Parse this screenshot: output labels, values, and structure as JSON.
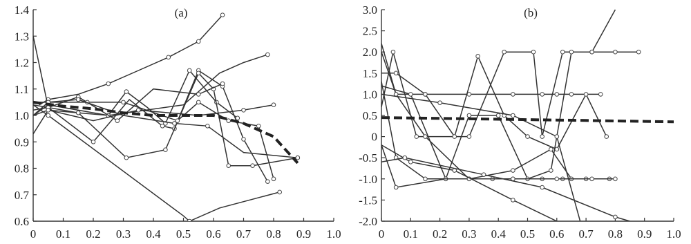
{
  "chart_data": [
    {
      "type": "line",
      "label": "(a)",
      "xlim": [
        0,
        1.0
      ],
      "ylim": [
        0.6,
        1.4
      ],
      "xticks": [
        "0",
        "0.1",
        "0.2",
        "0.3",
        "0.4",
        "0.5",
        "0.6",
        "0.7",
        "0.8",
        "0.9",
        "1.0"
      ],
      "xtick_values": [
        0,
        0.1,
        0.2,
        0.3,
        0.4,
        0.5,
        0.6,
        0.7,
        0.8,
        0.9,
        1.0
      ],
      "yticks": [
        "0.6",
        "0.7",
        "0.8",
        "0.9",
        "1.0",
        "1.1",
        "1.2",
        "1.3",
        "1.4"
      ],
      "ytick_values": [
        0.6,
        0.7,
        0.8,
        0.9,
        1.0,
        1.1,
        1.2,
        1.3,
        1.4
      ],
      "grid": false,
      "series": [
        {
          "x": [
            0.02,
            0.05,
            0.15,
            0.25,
            0.35,
            0.45,
            0.55,
            0.63
          ],
          "y": [
            1.04,
            1.06,
            1.08,
            1.12,
            1.17,
            1.22,
            1.28,
            1.38
          ],
          "markers": [
            false,
            true,
            false,
            true,
            false,
            true,
            true,
            true
          ]
        },
        {
          "x": [
            0.0,
            0.05,
            0.25,
            0.5,
            0.62,
            0.7,
            0.78
          ],
          "y": [
            1.0,
            1.04,
            1.0,
            1.04,
            1.16,
            1.2,
            1.23
          ],
          "markers": [
            false,
            true,
            false,
            false,
            false,
            false,
            true
          ]
        },
        {
          "x": [
            0.0,
            0.05,
            0.15,
            0.25,
            0.31,
            0.38,
            0.44,
            0.52,
            0.61,
            0.68
          ],
          "y": [
            1.3,
            1.03,
            1.01,
            1.0,
            1.09,
            1.03,
            0.97,
            1.17,
            1.05,
            0.99
          ],
          "markers": [
            false,
            true,
            true,
            true,
            true,
            false,
            true,
            true,
            true,
            true
          ]
        },
        {
          "x": [
            0.0,
            0.05,
            0.2,
            0.32,
            0.43,
            0.47,
            0.55,
            0.63,
            0.7,
            0.78
          ],
          "y": [
            1.04,
            1.03,
            0.9,
            1.06,
            0.96,
            0.95,
            1.17,
            1.11,
            0.91,
            0.75
          ],
          "markers": [
            false,
            true,
            true,
            false,
            true,
            true,
            true,
            true,
            true,
            true
          ]
        },
        {
          "x": [
            0.0,
            0.05,
            0.15,
            0.31,
            0.44,
            0.55,
            0.6,
            0.65,
            0.73,
            0.88
          ],
          "y": [
            0.93,
            1.02,
            1.01,
            0.84,
            0.87,
            1.16,
            1.1,
            0.81,
            0.81,
            0.84
          ],
          "markers": [
            false,
            true,
            true,
            true,
            true,
            true,
            true,
            true,
            true,
            true
          ]
        },
        {
          "x": [
            0.0,
            0.05,
            0.15,
            0.28,
            0.4,
            0.55,
            0.63
          ],
          "y": [
            1.02,
            1.03,
            1.07,
            0.98,
            1.1,
            1.08,
            1.12
          ],
          "markers": [
            false,
            true,
            true,
            true,
            false,
            true,
            true
          ]
        },
        {
          "x": [
            0.0,
            0.05,
            0.2,
            0.35,
            0.55,
            0.7,
            0.8
          ],
          "y": [
            1.0,
            1.02,
            0.98,
            1.02,
            1.0,
            1.02,
            1.04
          ],
          "markers": [
            false,
            true,
            false,
            true,
            false,
            true,
            true
          ]
        },
        {
          "x": [
            0.0,
            0.05,
            0.18,
            0.3,
            0.48,
            0.55,
            0.65,
            0.75,
            0.8
          ],
          "y": [
            1.05,
            1.05,
            1.05,
            1.05,
            0.98,
            1.05,
            0.98,
            0.96,
            0.76
          ],
          "markers": [
            false,
            true,
            true,
            true,
            true,
            true,
            true,
            true,
            true
          ]
        },
        {
          "x": [
            0.0,
            0.05,
            0.5,
            0.52,
            0.62,
            0.82
          ],
          "y": [
            1.04,
            1.0,
            0.62,
            0.6,
            0.65,
            0.71
          ],
          "markers": [
            false,
            true,
            false,
            true,
            false,
            true
          ]
        },
        {
          "x": [
            0.0,
            0.05,
            0.15,
            0.3,
            0.47,
            0.58,
            0.7,
            0.88
          ],
          "y": [
            1.0,
            1.05,
            1.06,
            1.0,
            0.97,
            0.96,
            0.86,
            0.84
          ],
          "markers": [
            false,
            true,
            true,
            false,
            true,
            true,
            false,
            true
          ]
        }
      ],
      "mean": {
        "x": [
          0.0,
          0.1,
          0.2,
          0.3,
          0.4,
          0.5,
          0.6,
          0.7,
          0.8,
          0.88
        ],
        "y": [
          1.05,
          1.035,
          1.025,
          1.01,
          1.0,
          1.0,
          1.0,
          0.97,
          0.92,
          0.82
        ]
      }
    },
    {
      "type": "line",
      "label": "(b)",
      "xlim": [
        0,
        1.0
      ],
      "ylim": [
        -2.0,
        3.0
      ],
      "xticks": [
        "0",
        "0.1",
        "0.2",
        "0.3",
        "0.4",
        "0.5",
        "0.6",
        "0.7",
        "0.8",
        "0.9",
        "1.0"
      ],
      "xtick_values": [
        0,
        0.1,
        0.2,
        0.3,
        0.4,
        0.5,
        0.6,
        0.7,
        0.8,
        0.9,
        1.0
      ],
      "yticks": [
        "-2.0",
        "-1.5",
        "-1.0",
        "-0.5",
        "0",
        "0.5",
        "1.0",
        "1.5",
        "2.0",
        "2.5",
        "3.0"
      ],
      "ytick_values": [
        -2.0,
        -1.5,
        -1.0,
        -0.5,
        0,
        0.5,
        1.0,
        1.5,
        2.0,
        2.5,
        3.0
      ],
      "grid": false,
      "series": [
        {
          "x": [
            0.0,
            0.05,
            0.15,
            0.3,
            0.45,
            0.55,
            0.6,
            0.65,
            0.75
          ],
          "y": [
            2.0,
            1.0,
            1.0,
            1.0,
            1.0,
            1.0,
            1.0,
            1.0,
            1.0
          ],
          "markers": [
            false,
            true,
            true,
            true,
            true,
            true,
            true,
            true,
            true
          ]
        },
        {
          "x": [
            0.0,
            0.04,
            0.12,
            0.3,
            0.42,
            0.52,
            0.55,
            0.62,
            0.72,
            0.8,
            0.88
          ],
          "y": [
            0.7,
            2.0,
            0.0,
            0.0,
            2.0,
            2.0,
            0.0,
            2.0,
            2.0,
            2.0,
            2.0
          ],
          "markers": [
            false,
            true,
            true,
            true,
            true,
            true,
            true,
            true,
            true,
            true,
            true
          ]
        },
        {
          "x": [
            0.0,
            0.05,
            0.15,
            0.25,
            0.33,
            0.42,
            0.5,
            0.6,
            0.7,
            0.77
          ],
          "y": [
            1.5,
            1.5,
            1.0,
            0.0,
            1.9,
            0.5,
            0.0,
            -0.3,
            1.0,
            0.0
          ],
          "markers": [
            false,
            true,
            true,
            true,
            true,
            true,
            true,
            true,
            true,
            true
          ]
        },
        {
          "x": [
            0.0,
            0.05,
            0.22,
            0.38,
            0.45,
            0.55,
            0.62,
            0.7,
            0.78
          ],
          "y": [
            -0.2,
            -1.2,
            -1.0,
            -1.0,
            -1.0,
            -1.0,
            -1.0,
            -1.0,
            -1.0
          ],
          "markers": [
            false,
            true,
            true,
            true,
            true,
            true,
            true,
            true,
            true
          ]
        },
        {
          "x": [
            0.0,
            0.1,
            0.22,
            0.3,
            0.4,
            0.5,
            0.58,
            0.65,
            0.72,
            0.8
          ],
          "y": [
            1.2,
            1.0,
            -1.0,
            0.5,
            0.5,
            -1.0,
            -0.8,
            2.0,
            2.0,
            3.0
          ],
          "markers": [
            false,
            true,
            true,
            true,
            true,
            true,
            true,
            true,
            true,
            false
          ]
        },
        {
          "x": [
            0.0,
            0.05,
            0.15,
            0.3,
            0.45,
            0.58,
            0.65,
            0.8
          ],
          "y": [
            2.2,
            1.0,
            0.0,
            -1.0,
            -0.8,
            -0.3,
            -1.0,
            -1.0
          ],
          "markers": [
            false,
            true,
            true,
            true,
            true,
            true,
            true,
            true
          ]
        },
        {
          "x": [
            0.0,
            0.05,
            0.15,
            0.3,
            0.45,
            0.6,
            0.72
          ],
          "y": [
            1.3,
            -0.5,
            -1.0,
            -1.0,
            -1.0,
            -1.0,
            -1.0
          ],
          "markers": [
            false,
            true,
            true,
            true,
            true,
            true,
            true
          ]
        },
        {
          "x": [
            0.0,
            0.1,
            0.25,
            0.45,
            0.6
          ],
          "y": [
            -0.2,
            -0.6,
            -0.8,
            -1.5,
            -2.0
          ],
          "markers": [
            false,
            true,
            true,
            true,
            false
          ]
        },
        {
          "x": [
            0.0,
            0.08,
            0.35,
            0.55,
            0.8,
            0.85
          ],
          "y": [
            -0.6,
            -0.5,
            -0.9,
            -1.2,
            -1.9,
            -2.0
          ],
          "markers": [
            false,
            true,
            true,
            true,
            true,
            false
          ]
        },
        {
          "x": [
            0.0,
            0.2,
            0.45,
            0.6,
            0.68
          ],
          "y": [
            1.0,
            0.8,
            0.5,
            0.0,
            -2.0
          ],
          "markers": [
            false,
            true,
            true,
            true,
            false
          ]
        }
      ],
      "mean": {
        "x": [
          0.0,
          0.1,
          0.2,
          0.3,
          0.4,
          0.5,
          0.6,
          0.7,
          0.8,
          0.9,
          1.0
        ],
        "y": [
          0.45,
          0.44,
          0.43,
          0.42,
          0.41,
          0.4,
          0.39,
          0.38,
          0.37,
          0.36,
          0.35
        ]
      }
    }
  ]
}
